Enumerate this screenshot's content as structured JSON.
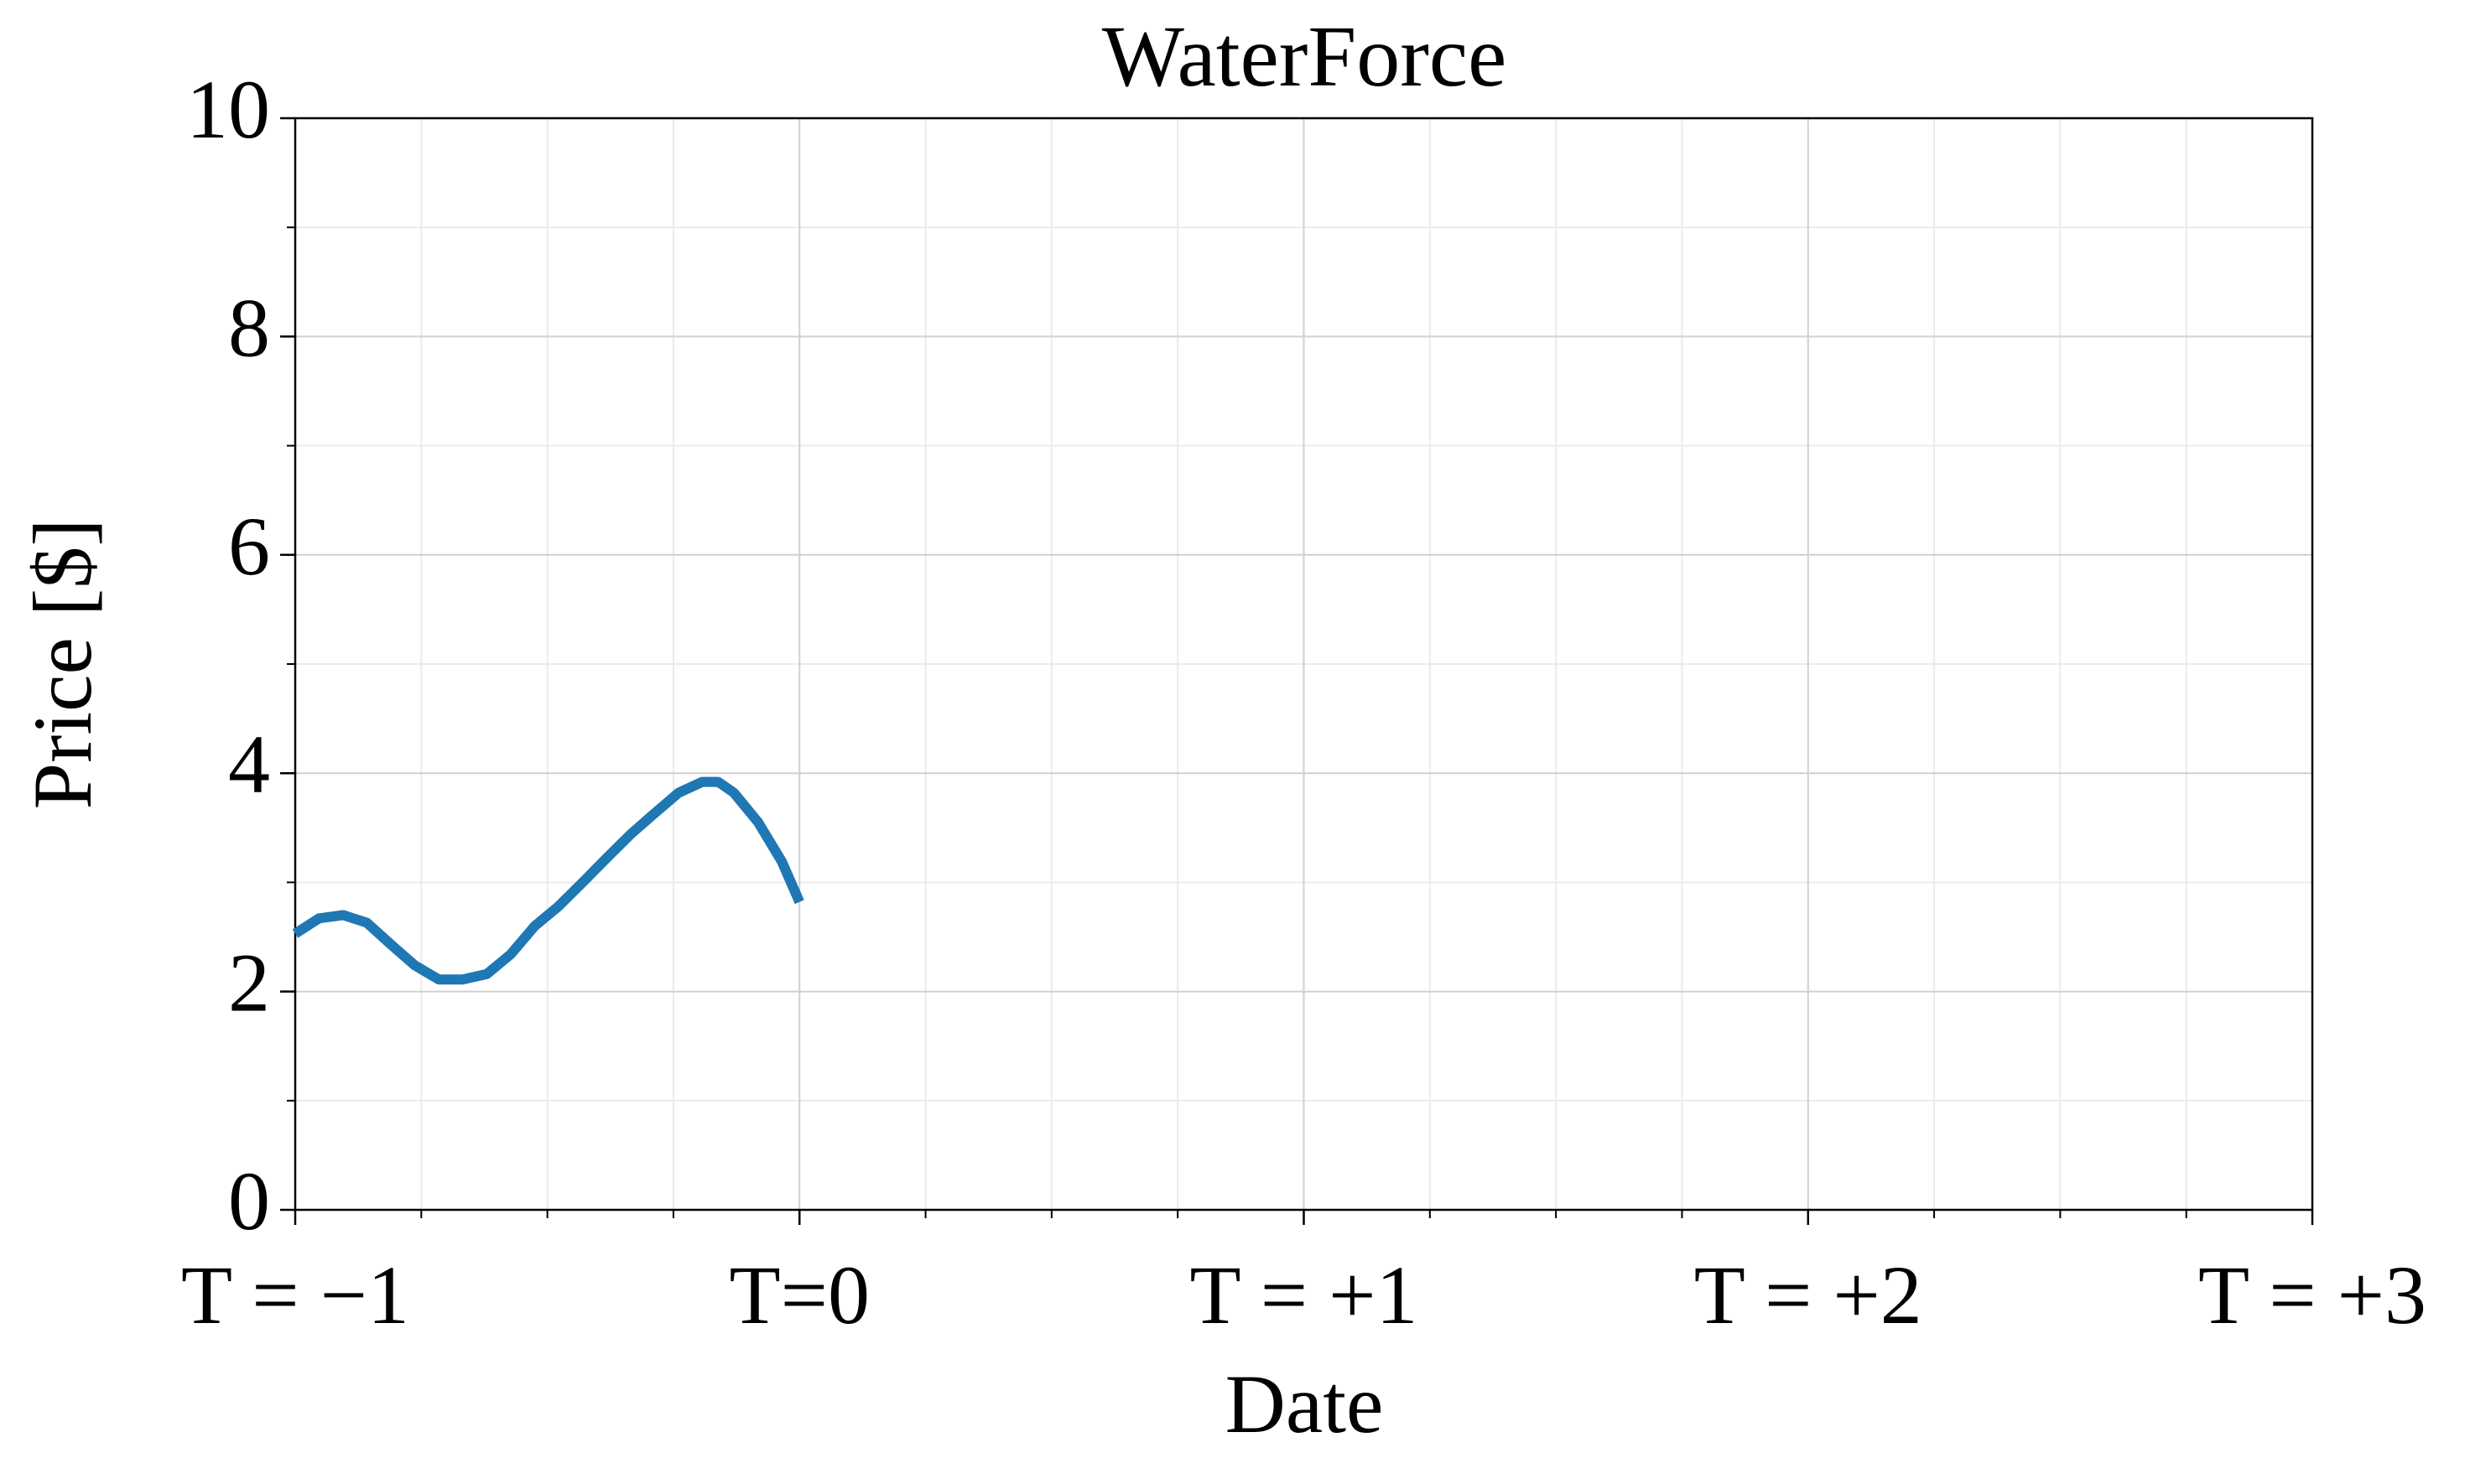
{
  "chart_data": {
    "type": "line",
    "title": "WaterForce",
    "x_label": "Date",
    "y_label": "Price [$]",
    "x": [
      -1.0,
      -0.953,
      -0.905,
      -0.858,
      -0.81,
      -0.763,
      -0.715,
      -0.668,
      -0.62,
      -0.573,
      -0.525,
      -0.478,
      -0.43,
      -0.383,
      -0.335,
      -0.288,
      -0.24,
      -0.193,
      -0.161,
      -0.13,
      -0.082,
      -0.035,
      0.0
    ],
    "series": [
      {
        "color": "#1f77b4",
        "values": [
          2.53,
          2.67,
          2.7,
          2.63,
          2.43,
          2.24,
          2.11,
          2.11,
          2.16,
          2.34,
          2.6,
          2.78,
          3.0,
          3.22,
          3.44,
          3.63,
          3.82,
          3.92,
          3.92,
          3.82,
          3.55,
          3.19,
          2.82
        ]
      }
    ],
    "xlim": [
      -1,
      3
    ],
    "ylim": [
      0,
      10
    ],
    "xticks": [
      {
        "value": -1,
        "label": "T = −1"
      },
      {
        "value": 0,
        "label": "T=0"
      },
      {
        "value": 1,
        "label": "T = +1"
      },
      {
        "value": 2,
        "label": "T = +2"
      },
      {
        "value": 3,
        "label": "T = +3"
      }
    ],
    "yticks": [
      0,
      2,
      4,
      6,
      8,
      10
    ],
    "xminorticks": [
      -0.75,
      -0.5,
      -0.25,
      0.25,
      0.5,
      0.75,
      1.25,
      1.5,
      1.75,
      2.25,
      2.5,
      2.75
    ],
    "yminorticks": [
      1,
      3,
      5,
      7,
      9
    ],
    "grid": true
  }
}
